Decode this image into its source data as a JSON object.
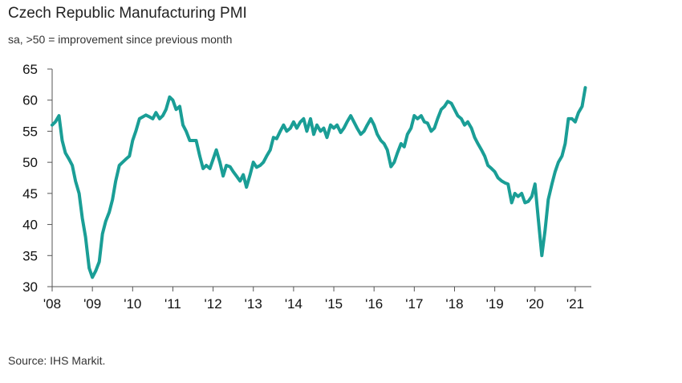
{
  "header": {
    "title": "Czech Republic Manufacturing PMI",
    "subtitle": "sa, >50 = improvement since previous month"
  },
  "footer": {
    "source": "Source: IHS Markit."
  },
  "chart_data": {
    "type": "line",
    "title": "Czech Republic Manufacturing PMI",
    "subtitle": "sa, >50 = improvement since previous month",
    "xlabel": "",
    "ylabel": "",
    "ylim": [
      30,
      65
    ],
    "yticks": [
      30,
      35,
      40,
      45,
      50,
      55,
      60,
      65
    ],
    "xlim": [
      2008.0,
      2021.4
    ],
    "xticks": [
      {
        "value": 2008,
        "label": "'08"
      },
      {
        "value": 2009,
        "label": "'09"
      },
      {
        "value": 2010,
        "label": "'10"
      },
      {
        "value": 2011,
        "label": "'11"
      },
      {
        "value": 2012,
        "label": "'12"
      },
      {
        "value": 2013,
        "label": "'13"
      },
      {
        "value": 2014,
        "label": "'14"
      },
      {
        "value": 2015,
        "label": "'15"
      },
      {
        "value": 2016,
        "label": "'16"
      },
      {
        "value": 2017,
        "label": "'17"
      },
      {
        "value": 2018,
        "label": "'18"
      },
      {
        "value": 2019,
        "label": "'19"
      },
      {
        "value": 2020,
        "label": "'20"
      },
      {
        "value": 2021,
        "label": "'21"
      }
    ],
    "grid": false,
    "legend": "none",
    "series": [
      {
        "color": "#1a9e96",
        "points": [
          [
            2008.0,
            56.0
          ],
          [
            2008.08,
            56.5
          ],
          [
            2008.17,
            57.5
          ],
          [
            2008.25,
            53.5
          ],
          [
            2008.33,
            51.5
          ],
          [
            2008.42,
            50.5
          ],
          [
            2008.5,
            49.5
          ],
          [
            2008.58,
            47.0
          ],
          [
            2008.67,
            45.0
          ],
          [
            2008.75,
            41.0
          ],
          [
            2008.83,
            38.0
          ],
          [
            2008.92,
            33.0
          ],
          [
            2009.0,
            31.5
          ],
          [
            2009.08,
            32.5
          ],
          [
            2009.17,
            34.0
          ],
          [
            2009.25,
            38.5
          ],
          [
            2009.33,
            40.5
          ],
          [
            2009.42,
            42.0
          ],
          [
            2009.5,
            44.0
          ],
          [
            2009.58,
            47.0
          ],
          [
            2009.67,
            49.5
          ],
          [
            2009.75,
            50.0
          ],
          [
            2009.83,
            50.5
          ],
          [
            2009.92,
            51.0
          ],
          [
            2010.0,
            53.5
          ],
          [
            2010.08,
            55.0
          ],
          [
            2010.17,
            57.0
          ],
          [
            2010.25,
            57.3
          ],
          [
            2010.33,
            57.6
          ],
          [
            2010.42,
            57.3
          ],
          [
            2010.5,
            57.0
          ],
          [
            2010.58,
            58.0
          ],
          [
            2010.67,
            57.0
          ],
          [
            2010.75,
            57.5
          ],
          [
            2010.83,
            58.5
          ],
          [
            2010.92,
            60.5
          ],
          [
            2011.0,
            60.0
          ],
          [
            2011.08,
            58.5
          ],
          [
            2011.17,
            59.0
          ],
          [
            2011.25,
            56.0
          ],
          [
            2011.33,
            55.0
          ],
          [
            2011.42,
            53.5
          ],
          [
            2011.5,
            53.5
          ],
          [
            2011.58,
            53.5
          ],
          [
            2011.67,
            51.0
          ],
          [
            2011.75,
            49.0
          ],
          [
            2011.83,
            49.5
          ],
          [
            2011.92,
            49.0
          ],
          [
            2012.0,
            50.5
          ],
          [
            2012.08,
            52.0
          ],
          [
            2012.17,
            50.0
          ],
          [
            2012.25,
            47.8
          ],
          [
            2012.33,
            49.5
          ],
          [
            2012.42,
            49.3
          ],
          [
            2012.5,
            48.5
          ],
          [
            2012.58,
            47.8
          ],
          [
            2012.67,
            47.0
          ],
          [
            2012.75,
            48.0
          ],
          [
            2012.83,
            46.0
          ],
          [
            2012.92,
            48.0
          ],
          [
            2013.0,
            50.0
          ],
          [
            2013.08,
            49.2
          ],
          [
            2013.17,
            49.5
          ],
          [
            2013.25,
            50.0
          ],
          [
            2013.33,
            51.0
          ],
          [
            2013.42,
            52.0
          ],
          [
            2013.5,
            54.0
          ],
          [
            2013.58,
            53.8
          ],
          [
            2013.67,
            55.0
          ],
          [
            2013.75,
            56.0
          ],
          [
            2013.83,
            55.0
          ],
          [
            2013.92,
            55.5
          ],
          [
            2014.0,
            56.5
          ],
          [
            2014.08,
            55.5
          ],
          [
            2014.17,
            56.5
          ],
          [
            2014.25,
            57.0
          ],
          [
            2014.33,
            55.0
          ],
          [
            2014.42,
            57.0
          ],
          [
            2014.5,
            54.5
          ],
          [
            2014.58,
            56.0
          ],
          [
            2014.67,
            55.0
          ],
          [
            2014.75,
            55.5
          ],
          [
            2014.83,
            54.0
          ],
          [
            2014.92,
            56.0
          ],
          [
            2015.0,
            55.5
          ],
          [
            2015.08,
            56.0
          ],
          [
            2015.17,
            54.8
          ],
          [
            2015.25,
            55.5
          ],
          [
            2015.33,
            56.5
          ],
          [
            2015.42,
            57.5
          ],
          [
            2015.5,
            56.5
          ],
          [
            2015.58,
            55.5
          ],
          [
            2015.67,
            54.5
          ],
          [
            2015.75,
            55.0
          ],
          [
            2015.83,
            56.0
          ],
          [
            2015.92,
            57.0
          ],
          [
            2016.0,
            56.0
          ],
          [
            2016.08,
            54.5
          ],
          [
            2016.17,
            53.5
          ],
          [
            2016.25,
            53.0
          ],
          [
            2016.33,
            52.0
          ],
          [
            2016.42,
            49.3
          ],
          [
            2016.5,
            50.0
          ],
          [
            2016.58,
            51.5
          ],
          [
            2016.67,
            53.0
          ],
          [
            2016.75,
            52.5
          ],
          [
            2016.83,
            54.5
          ],
          [
            2016.92,
            55.5
          ],
          [
            2017.0,
            57.5
          ],
          [
            2017.08,
            57.0
          ],
          [
            2017.17,
            57.5
          ],
          [
            2017.25,
            56.5
          ],
          [
            2017.33,
            56.3
          ],
          [
            2017.42,
            55.0
          ],
          [
            2017.5,
            55.5
          ],
          [
            2017.58,
            57.0
          ],
          [
            2017.67,
            58.5
          ],
          [
            2017.75,
            59.0
          ],
          [
            2017.83,
            59.8
          ],
          [
            2017.92,
            59.5
          ],
          [
            2018.0,
            58.5
          ],
          [
            2018.08,
            57.5
          ],
          [
            2018.17,
            57.0
          ],
          [
            2018.25,
            56.0
          ],
          [
            2018.33,
            56.5
          ],
          [
            2018.42,
            55.5
          ],
          [
            2018.5,
            54.0
          ],
          [
            2018.58,
            53.0
          ],
          [
            2018.67,
            52.0
          ],
          [
            2018.75,
            51.0
          ],
          [
            2018.83,
            49.5
          ],
          [
            2018.92,
            49.0
          ],
          [
            2019.0,
            48.5
          ],
          [
            2019.08,
            47.5
          ],
          [
            2019.17,
            47.0
          ],
          [
            2019.25,
            46.7
          ],
          [
            2019.33,
            46.5
          ],
          [
            2019.42,
            43.5
          ],
          [
            2019.5,
            45.0
          ],
          [
            2019.58,
            44.5
          ],
          [
            2019.67,
            45.0
          ],
          [
            2019.75,
            43.5
          ],
          [
            2019.83,
            43.7
          ],
          [
            2019.92,
            44.5
          ],
          [
            2020.0,
            46.5
          ],
          [
            2020.08,
            41.0
          ],
          [
            2020.17,
            35.0
          ],
          [
            2020.25,
            39.0
          ],
          [
            2020.33,
            44.0
          ],
          [
            2020.42,
            46.5
          ],
          [
            2020.5,
            48.5
          ],
          [
            2020.58,
            50.0
          ],
          [
            2020.67,
            51.0
          ],
          [
            2020.75,
            53.0
          ],
          [
            2020.83,
            57.0
          ],
          [
            2020.92,
            57.0
          ],
          [
            2021.0,
            56.5
          ],
          [
            2021.08,
            58.0
          ],
          [
            2021.17,
            59.0
          ],
          [
            2021.25,
            62.0
          ]
        ]
      }
    ]
  }
}
